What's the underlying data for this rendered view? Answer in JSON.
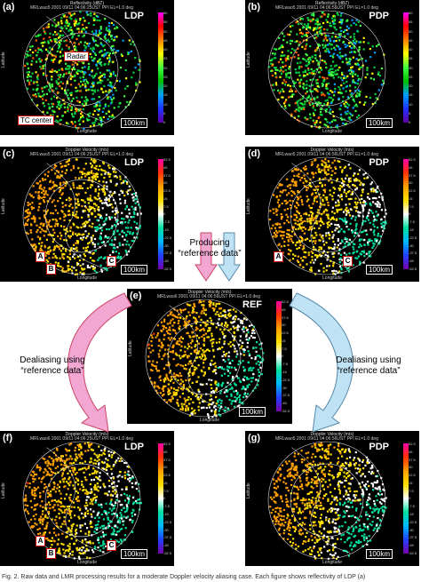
{
  "panels": {
    "a": {
      "label": "(a)",
      "type": "LDP",
      "title": "Reflectivity (dBZ)",
      "sub": "MRLwao5 2001 09/11 04:06:25UST PPI EL=1.0 deg",
      "range": "100km",
      "lon": "Longitude",
      "lat": "Latitude"
    },
    "b": {
      "label": "(b)",
      "type": "PDP",
      "title": "Reflectivity (dBZ)",
      "sub": "MRLwao5 2001 09/11 04:06:56UST PPI EL=1.0 deg",
      "range": "100km",
      "lon": "Longitude",
      "lat": "Latitude"
    },
    "c": {
      "label": "(c)",
      "type": "LDP",
      "title": "Doppler Velocity (m/s)",
      "sub": "MRLwao5 2001 09/11 04:06:25UST PPI EL=1.0 deg",
      "range": "100km",
      "lon": "Longitude",
      "lat": "Latitude"
    },
    "d": {
      "label": "(d)",
      "type": "PDP",
      "title": "Doppler Velocity (m/s)",
      "sub": "MRLwao5 2001 09/11 04:06:56UST PPI EL=1.0 deg",
      "range": "100km",
      "lon": "Longitude",
      "lat": "Latitude"
    },
    "e": {
      "label": "(e)",
      "type": "REF",
      "title": "Doppler Velocity (m/s)",
      "sub": "MRLwao6 2001 09/11 04:06:56UST PPI EL=1.0 deg",
      "range": "100km",
      "lon": "Longitude",
      "lat": "Latitude"
    },
    "f": {
      "label": "(f)",
      "type": "LDP",
      "title": "Doppler Velocity (m/s)",
      "sub": "MRLwao6 2001 09/11 04:06:25UST PPI EL=1.0 deg",
      "range": "100km",
      "lon": "Longitude",
      "lat": "Latitude"
    },
    "g": {
      "label": "(g)",
      "type": "PDP",
      "title": "Doppler Velocity (m/s)",
      "sub": "MRLwao5 2001 09/11 04:06:56UST PPI EL=1.0 deg",
      "range": "100km",
      "lon": "Longitude",
      "lat": "Latitude"
    }
  },
  "annotations": {
    "radar": "Radar",
    "tc_center": "TC center",
    "A": "A",
    "B": "B",
    "C": "C"
  },
  "flow": {
    "producing": "Producing",
    "reference_data": "“reference data”",
    "dealiasing_left": "Dealiasing using",
    "dealiasing_right": "Dealiasing using",
    "ref_left": "“reference data”",
    "ref_right": "“reference data”"
  },
  "velocity_ticks": [
    "52.5",
    "45",
    "37.5",
    "30",
    "22.5",
    "15",
    "7.5",
    "0",
    "-7.5",
    "-15",
    "-22.5",
    "-30",
    "-37.5",
    "-45",
    "-52.5"
  ],
  "reflectivity_ticks": [
    "60",
    "55",
    "50",
    "45",
    "40",
    "35",
    "30",
    "25",
    "20",
    "15",
    "10",
    "5",
    "0"
  ],
  "caption": "Fig. 2. Raw data and LMR processing results for a moderate Doppler velocity aliasing case. Each figure shows reflectivity of LDP (a)",
  "colors": {
    "arrow_pink": "#e87ab8",
    "arrow_blue": "#9fd6ee"
  }
}
